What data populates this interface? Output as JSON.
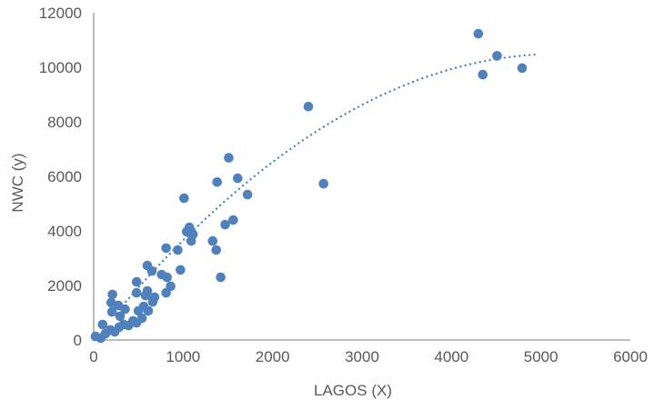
{
  "chart_data": {
    "type": "scatter",
    "title": "",
    "xlabel": "LAGOS (X)",
    "ylabel": "NWC (y)",
    "xlim": [
      0,
      6000
    ],
    "ylim": [
      0,
      12000
    ],
    "x_ticks": [
      0,
      1000,
      2000,
      3000,
      4000,
      5000,
      6000
    ],
    "y_ticks": [
      0,
      2000,
      4000,
      6000,
      8000,
      10000,
      12000
    ],
    "grid": false,
    "legend": false,
    "colors": {
      "marker": "#4f81bd",
      "trendline": "#4f81bd",
      "axis_line": "#a6a6a6",
      "text": "#595959",
      "background": "#ffffff"
    },
    "points": [
      [
        20,
        130
      ],
      [
        80,
        70
      ],
      [
        100,
        570
      ],
      [
        130,
        230
      ],
      [
        185,
        370
      ],
      [
        235,
        300
      ],
      [
        285,
        470
      ],
      [
        335,
        570
      ],
      [
        390,
        530
      ],
      [
        440,
        700
      ],
      [
        480,
        630
      ],
      [
        540,
        800
      ],
      [
        205,
        1030
      ],
      [
        295,
        870
      ],
      [
        350,
        1130
      ],
      [
        275,
        1270
      ],
      [
        195,
        1370
      ],
      [
        210,
        1670
      ],
      [
        500,
        1070
      ],
      [
        560,
        1230
      ],
      [
        610,
        1070
      ],
      [
        480,
        1730
      ],
      [
        580,
        1630
      ],
      [
        660,
        1400
      ],
      [
        810,
        1730
      ],
      [
        860,
        1970
      ],
      [
        480,
        2130
      ],
      [
        600,
        1800
      ],
      [
        680,
        1570
      ],
      [
        600,
        2730
      ],
      [
        650,
        2530
      ],
      [
        760,
        2400
      ],
      [
        820,
        2300
      ],
      [
        970,
        2570
      ],
      [
        810,
        3370
      ],
      [
        940,
        3300
      ],
      [
        1040,
        3970
      ],
      [
        1070,
        4130
      ],
      [
        1090,
        3630
      ],
      [
        1110,
        3870
      ],
      [
        1330,
        3630
      ],
      [
        1370,
        3300
      ],
      [
        1470,
        4230
      ],
      [
        1560,
        4400
      ],
      [
        1420,
        2300
      ],
      [
        1010,
        5200
      ],
      [
        1380,
        5790
      ],
      [
        1510,
        6680
      ],
      [
        1610,
        5930
      ],
      [
        1720,
        5330
      ],
      [
        2400,
        8560
      ],
      [
        2570,
        5730
      ],
      [
        4300,
        11230
      ],
      [
        4510,
        10420
      ],
      [
        4350,
        9730
      ],
      [
        4790,
        9970
      ]
    ],
    "trendline": {
      "style": "dotted",
      "type": "polynomial_order_2",
      "coeff_linear": 4.04,
      "coeff_quadratic": -0.000389,
      "x_start": 250,
      "x_end": 4950
    }
  }
}
